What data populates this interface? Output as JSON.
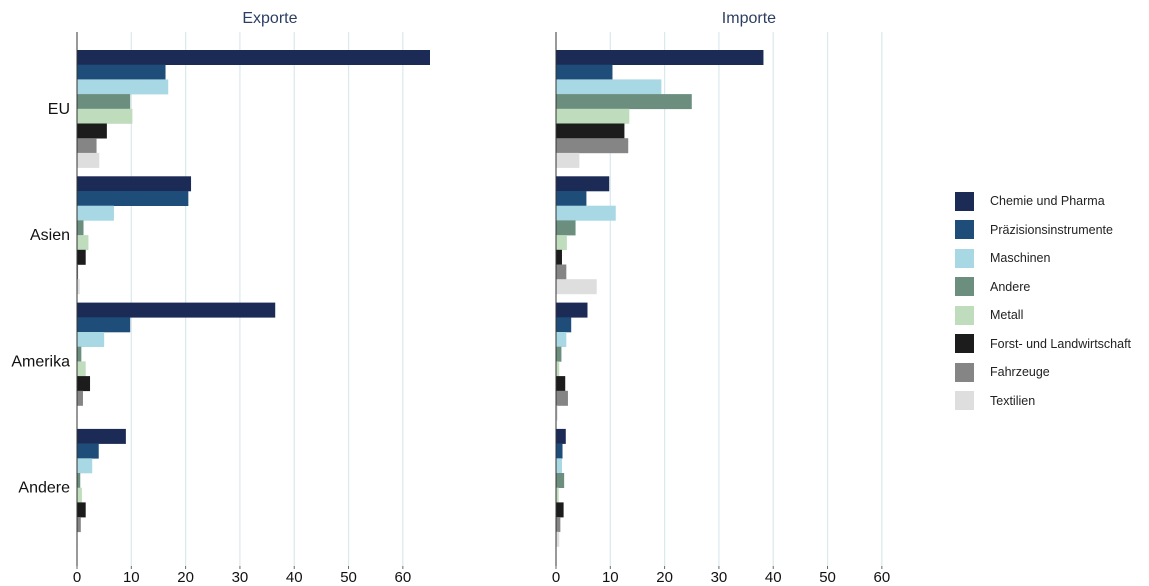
{
  "chart_data": {
    "type": "bar",
    "orientation": "horizontal",
    "categories": [
      "EU",
      "Asien",
      "Amerika",
      "Andere"
    ],
    "panels": [
      {
        "title": "Exporte",
        "xlim": [
          0,
          65
        ],
        "ticks": [
          0,
          10,
          20,
          30,
          40,
          50,
          60
        ],
        "series": [
          {
            "name": "Chemie und Pharma",
            "values": [
              65,
              21,
              36.5,
              9
            ]
          },
          {
            "name": "Präzisionsinstrumente",
            "values": [
              16.3,
              20.5,
              9.8,
              4
            ]
          },
          {
            "name": "Maschinen",
            "values": [
              16.8,
              6.8,
              5,
              2.8
            ]
          },
          {
            "name": "Andere",
            "values": [
              9.8,
              1.2,
              0.8,
              0.6
            ]
          },
          {
            "name": "Metall",
            "values": [
              10.2,
              2.1,
              1.6,
              0.9
            ]
          },
          {
            "name": "Forst- und Landwirtschaft",
            "values": [
              5.5,
              1.6,
              2.4,
              1.6
            ]
          },
          {
            "name": "Fahrzeuge",
            "values": [
              3.6,
              0.2,
              1.1,
              0.7
            ]
          },
          {
            "name": "Textilien",
            "values": [
              4.1,
              0.5,
              0.1,
              0.1
            ]
          }
        ]
      },
      {
        "title": "Importe",
        "xlim": [
          0,
          65
        ],
        "ticks": [
          0,
          10,
          20,
          30,
          40,
          50,
          60
        ],
        "series": [
          {
            "name": "Chemie und Pharma",
            "values": [
              38.2,
              9.8,
              5.8,
              1.8
            ]
          },
          {
            "name": "Präzisionsinstrumente",
            "values": [
              10.4,
              5.6,
              2.8,
              1.2
            ]
          },
          {
            "name": "Maschinen",
            "values": [
              19.4,
              11,
              1.9,
              1.1
            ]
          },
          {
            "name": "Andere",
            "values": [
              25,
              3.6,
              1,
              1.5
            ]
          },
          {
            "name": "Metall",
            "values": [
              13.5,
              2,
              0.6,
              0.5
            ]
          },
          {
            "name": "Forst- und Landwirtschaft",
            "values": [
              12.6,
              1.1,
              1.7,
              1.4
            ]
          },
          {
            "name": "Fahrzeuge",
            "values": [
              13.3,
              1.9,
              2.2,
              0.8
            ]
          },
          {
            "name": "Textilien",
            "values": [
              4.3,
              7.5,
              0.3,
              0.6
            ]
          }
        ]
      }
    ],
    "colors": [
      "#1c2b55",
      "#1f4d79",
      "#a8d8e3",
      "#6b8e7f",
      "#bfdcbc",
      "#1c1c1c",
      "#858585",
      "#dedede"
    ],
    "legend": {
      "position": "right",
      "entries": [
        "Chemie und Pharma",
        "Präzisionsinstrumente",
        "Maschinen",
        "Andere",
        "Metall",
        "Forst- und Landwirtschaft",
        "Fahrzeuge",
        "Textilien"
      ]
    },
    "grid": true,
    "xlabel": "",
    "ylabel": ""
  }
}
